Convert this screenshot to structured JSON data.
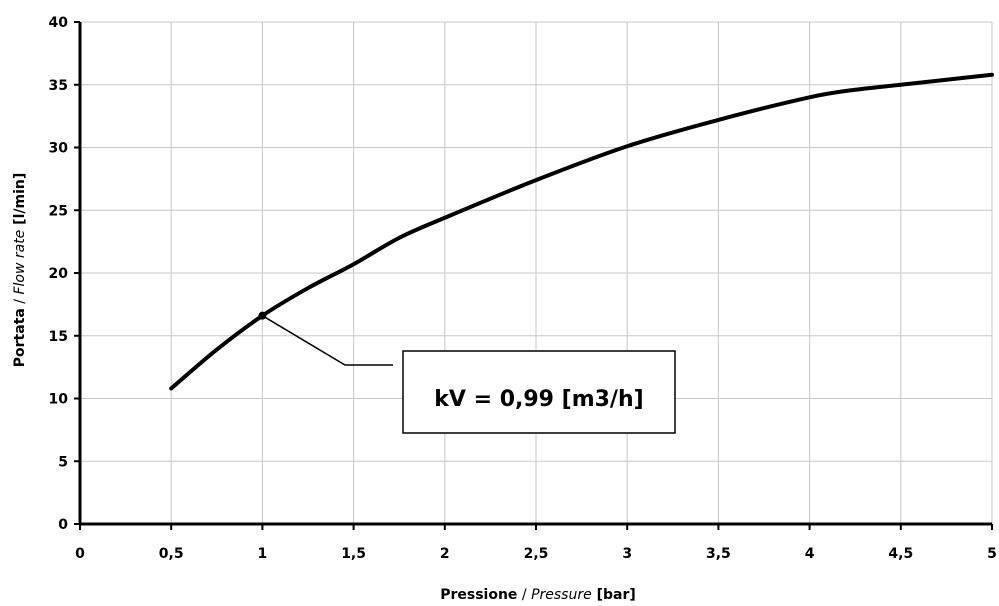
{
  "chart_data": {
    "type": "line",
    "x": [
      0.5,
      0.75,
      1.0,
      1.25,
      1.5,
      1.75,
      2.0,
      2.5,
      3.0,
      3.5,
      4.0,
      4.25,
      4.5,
      4.75,
      5.0
    ],
    "series": [
      {
        "values": [
          10.8,
          13.9,
          16.6,
          18.8,
          20.7,
          22.8,
          24.4,
          27.4,
          30.1,
          32.2,
          34.0,
          34.6,
          35.0,
          35.4,
          35.8
        ]
      }
    ],
    "xlim": [
      0,
      5
    ],
    "ylim": [
      0,
      40
    ],
    "x_ticks": [
      "0",
      "0,5",
      "1",
      "1,5",
      "2",
      "2,5",
      "3",
      "3,5",
      "4",
      "4,5",
      "5"
    ],
    "y_ticks": [
      "0",
      "5",
      "10",
      "15",
      "20",
      "25",
      "30",
      "35",
      "40"
    ],
    "xlabel": {
      "part1": "Pressione",
      "sep": " / ",
      "part2": "Pressure",
      "unit": " [bar]"
    },
    "ylabel": {
      "part1": "Portata",
      "sep": " / ",
      "part2": "Flow rate",
      "unit": " [l/min]"
    },
    "grid": true,
    "annotation": {
      "text": "kV = 0,99 [m3/h]",
      "point_x": 1.0,
      "point_y": 16.6
    }
  }
}
